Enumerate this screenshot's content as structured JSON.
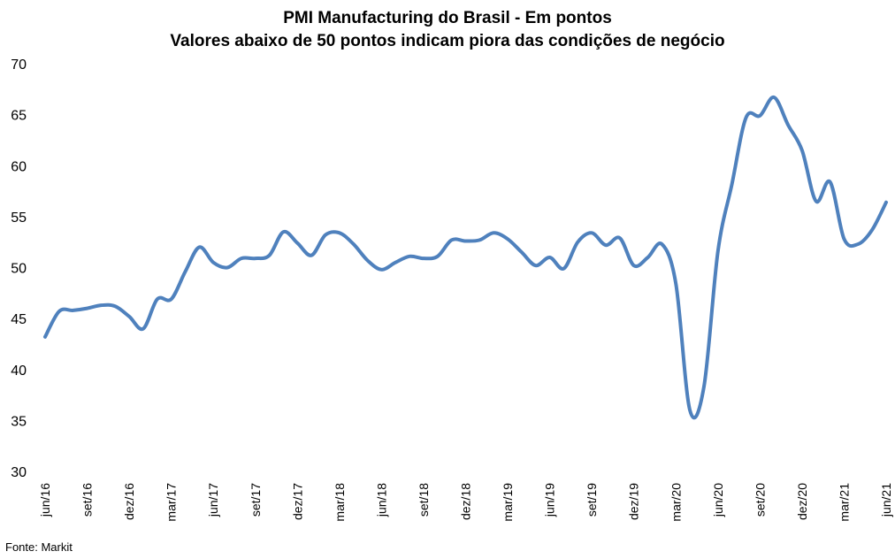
{
  "source": "Fonte: Markit",
  "chart_data": {
    "type": "line",
    "title": "PMI Manufacturing do Brasil - Em pontos",
    "subtitle": "Valores abaixo de 50 pontos indicam piora das condições de negócio",
    "ylim": [
      30,
      70
    ],
    "yticks": [
      "30",
      "35",
      "40",
      "45",
      "50",
      "55",
      "60",
      "65",
      "70"
    ],
    "x": [
      "jun/16",
      "jul/16",
      "ago/16",
      "set/16",
      "out/16",
      "nov/16",
      "dez/16",
      "jan/17",
      "fev/17",
      "mar/17",
      "abr/17",
      "mai/17",
      "jun/17",
      "jul/17",
      "ago/17",
      "set/17",
      "out/17",
      "nov/17",
      "dez/17",
      "jan/18",
      "fev/18",
      "mar/18",
      "abr/18",
      "mai/18",
      "jun/18",
      "jul/18",
      "ago/18",
      "set/18",
      "out/18",
      "nov/18",
      "dez/18",
      "jan/19",
      "fev/19",
      "mar/19",
      "abr/19",
      "mai/19",
      "jun/19",
      "jul/19",
      "ago/19",
      "set/19",
      "out/19",
      "nov/19",
      "dez/19",
      "jan/20",
      "fev/20",
      "mar/20",
      "abr/20",
      "mai/20",
      "jun/20",
      "jul/20",
      "ago/20",
      "set/20",
      "out/20",
      "nov/20",
      "dez/20",
      "jan/21",
      "fev/21",
      "mar/21",
      "abr/21",
      "mai/21",
      "jun/21"
    ],
    "x_tick_labels": [
      "jun/16",
      "set/16",
      "dez/16",
      "mar/17",
      "jun/17",
      "set/17",
      "dez/17",
      "mar/18",
      "jun/18",
      "set/18",
      "dez/18",
      "mar/19",
      "jun/19",
      "set/19",
      "dez/19",
      "mar/20",
      "jun/20",
      "set/20",
      "dez/20",
      "mar/21",
      "jun/21"
    ],
    "series": [
      {
        "color": "#4f81bd",
        "values": [
          43.2,
          45.7,
          45.8,
          46.0,
          46.3,
          46.2,
          45.2,
          44.0,
          46.9,
          46.9,
          49.6,
          52.0,
          50.5,
          50.0,
          50.9,
          50.9,
          51.2,
          53.5,
          52.4,
          51.2,
          53.2,
          53.4,
          52.3,
          50.7,
          49.8,
          50.5,
          51.1,
          50.9,
          51.1,
          52.7,
          52.6,
          52.7,
          53.4,
          52.8,
          51.5,
          50.2,
          51.0,
          49.9,
          52.5,
          53.4,
          52.2,
          52.9,
          50.2,
          51.0,
          52.3,
          48.4,
          36.0,
          38.3,
          51.6,
          58.2,
          64.7,
          64.9,
          66.7,
          64.0,
          61.5,
          56.5,
          58.4,
          52.8,
          52.3,
          53.7,
          56.4
        ]
      }
    ]
  }
}
